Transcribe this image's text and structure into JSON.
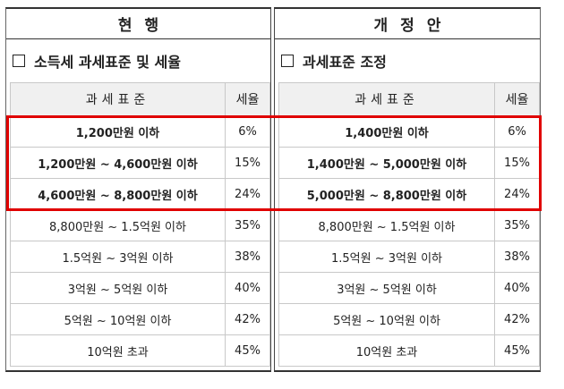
{
  "current": {
    "heading": "현행",
    "subtitle": "소득세 과세표준 및 세율",
    "col_base": "과세표준",
    "col_rate": "세율",
    "rows": [
      {
        "base": "1,200만원 이하",
        "rate": "6%",
        "bold": true
      },
      {
        "base": "1,200만원 ~ 4,600만원 이하",
        "rate": "15%",
        "bold": true
      },
      {
        "base": "4,600만원 ~ 8,800만원 이하",
        "rate": "24%",
        "bold": true
      },
      {
        "base": "8,800만원 ~ 1.5억원 이하",
        "rate": "35%",
        "bold": false
      },
      {
        "base": "1.5억원 ~ 3억원 이하",
        "rate": "38%",
        "bold": false
      },
      {
        "base": "3억원 ~ 5억원 이하",
        "rate": "40%",
        "bold": false
      },
      {
        "base": "5억원 ~ 10억원 이하",
        "rate": "42%",
        "bold": false
      },
      {
        "base": "10억원 초과",
        "rate": "45%",
        "bold": false
      }
    ]
  },
  "proposed": {
    "heading": "개정안",
    "subtitle": "과세표준 조정",
    "col_base": "과세표준",
    "col_rate": "세율",
    "rows": [
      {
        "base": "1,400만원 이하",
        "rate": "6%",
        "bold": true
      },
      {
        "base": "1,400만원 ~ 5,000만원 이하",
        "rate": "15%",
        "bold": true
      },
      {
        "base": "5,000만원 ~ 8,800만원 이하",
        "rate": "24%",
        "bold": true
      },
      {
        "base": "8,800만원 ~ 1.5억원 이하",
        "rate": "35%",
        "bold": false
      },
      {
        "base": "1.5억원 ~ 3억원 이하",
        "rate": "38%",
        "bold": false
      },
      {
        "base": "3억원 ~ 5억원 이하",
        "rate": "40%",
        "bold": false
      },
      {
        "base": "5억원 ~ 10억원 이하",
        "rate": "42%",
        "bold": false
      },
      {
        "base": "10억원 초과",
        "rate": "45%",
        "bold": false
      }
    ]
  },
  "colors": {
    "highlight": "#e00000",
    "header_bg": "#f0f0f0"
  }
}
